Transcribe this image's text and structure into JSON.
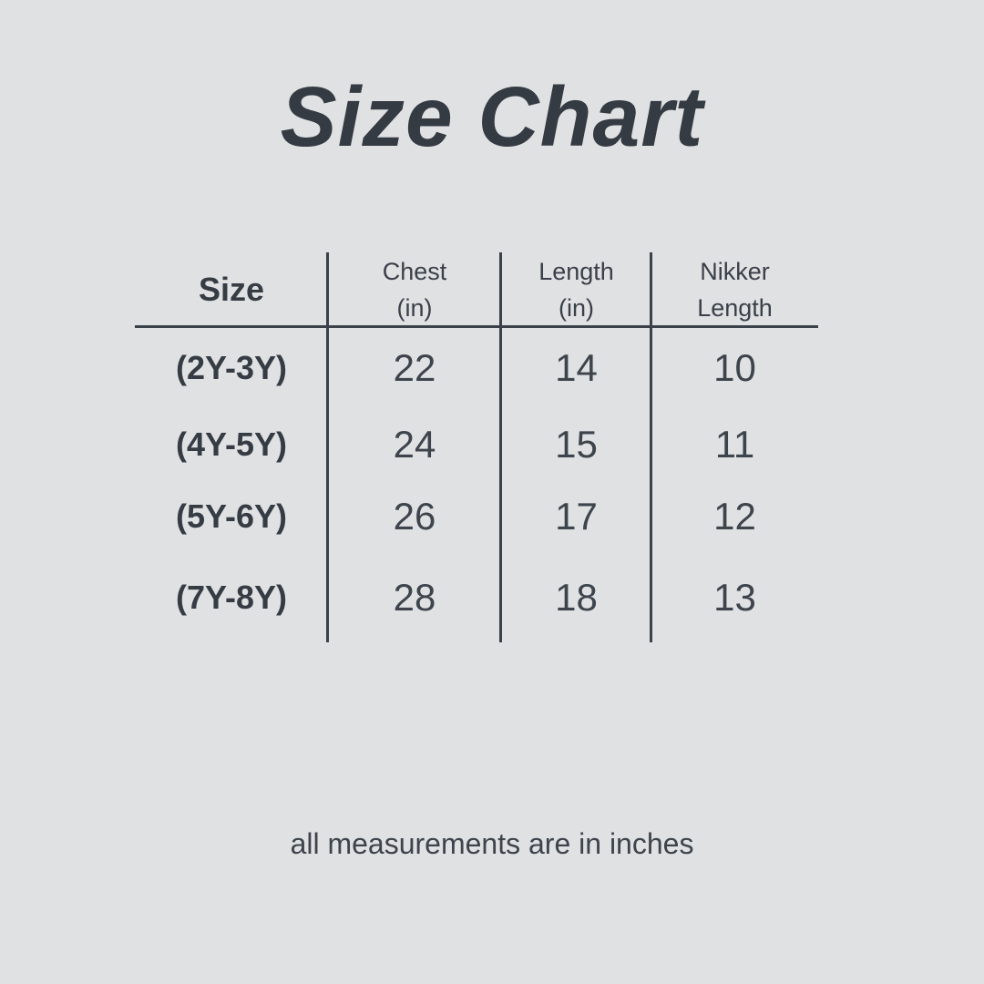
{
  "colors": {
    "background": "#e0e1e3",
    "text": "#363c44",
    "lines": "#3a4149"
  },
  "title": "Size Chart",
  "footer_note": "all measurements are in inches",
  "chart_data": {
    "type": "table",
    "title": "Size Chart",
    "columns": [
      [
        "Size"
      ],
      [
        "Chest",
        "(in)"
      ],
      [
        "Length",
        "(in)"
      ],
      [
        "Nikker",
        "Length"
      ]
    ],
    "rows": [
      [
        "(2Y-3Y)",
        "22",
        "14",
        "10"
      ],
      [
        "(4Y-5Y)",
        "24",
        "15",
        "11"
      ],
      [
        "(5Y-6Y)",
        "26",
        "17",
        "12"
      ],
      [
        "(7Y-8Y)",
        "28",
        "18",
        "13"
      ]
    ],
    "units": "inches",
    "note": "all measurements are in inches"
  }
}
